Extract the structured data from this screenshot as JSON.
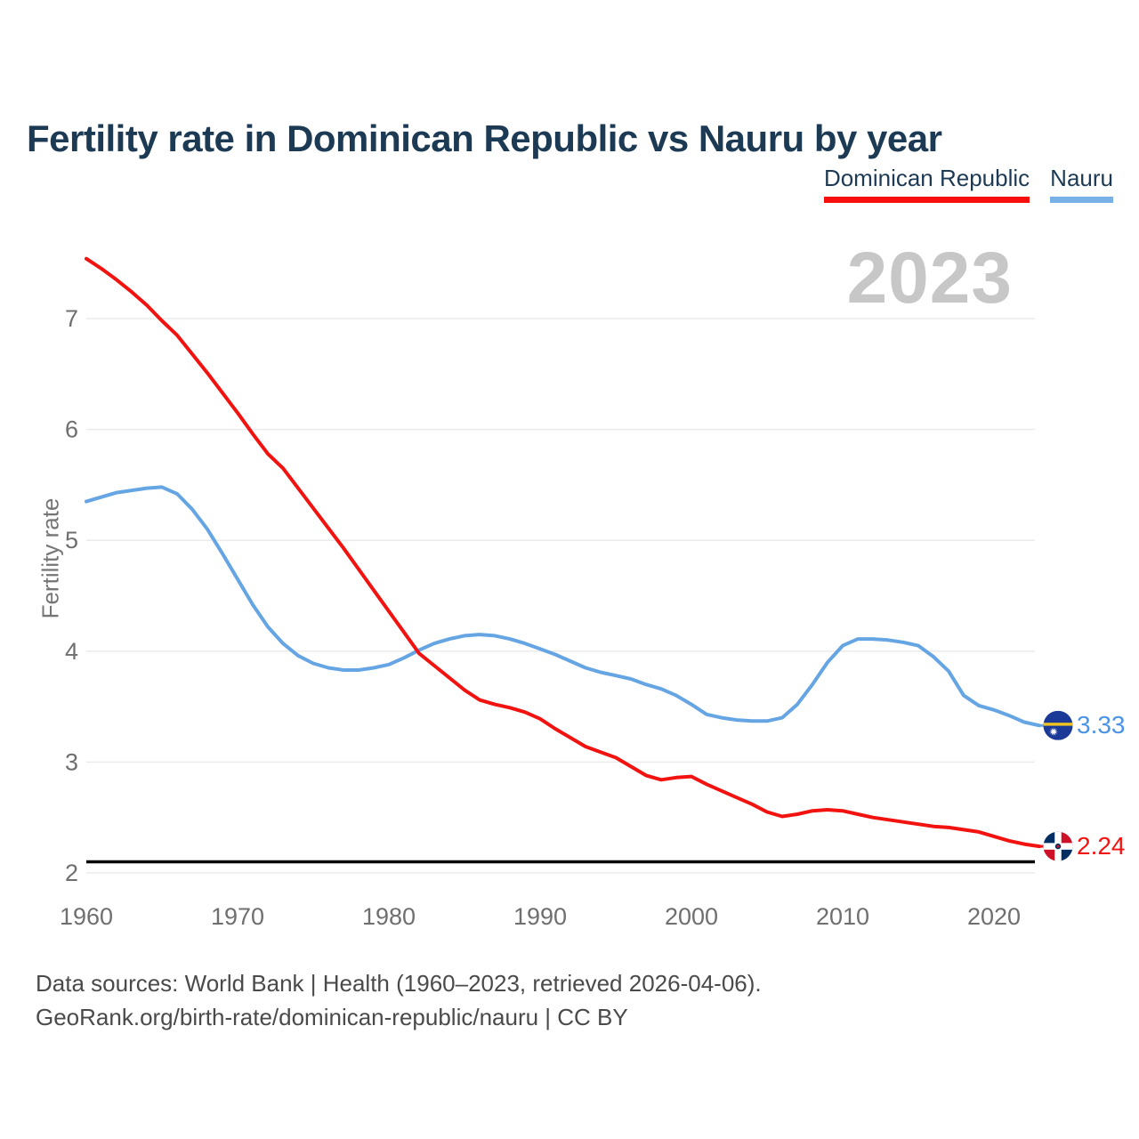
{
  "header": {
    "title": "Fertility rate in Dominican Republic vs Nauru by year"
  },
  "legend": {
    "items": [
      {
        "label": "Dominican Republic",
        "underline_color": "#f70f0f"
      },
      {
        "label": "Nauru",
        "underline_color": "#78b1e8"
      }
    ]
  },
  "watermark": {
    "year": "2023"
  },
  "footer": {
    "line1": "Data sources: World Bank | Health (1960–2023, retrieved 2026-04-06).",
    "line2": "GeoRank.org/birth-rate/dominican-republic/nauru | CC BY"
  },
  "chart_data": {
    "type": "line",
    "title": "Fertility rate in Dominican Republic vs Nauru by year",
    "xlabel": "",
    "ylabel": "Fertility rate",
    "xlim": [
      1960,
      2023
    ],
    "ylim": [
      2,
      7.8
    ],
    "x_ticks": [
      1960,
      1970,
      1980,
      1990,
      2000,
      2010,
      2020
    ],
    "y_ticks": [
      2,
      3,
      4,
      5,
      6,
      7
    ],
    "grid": "horizontal-only",
    "legend_position": "top-right",
    "reference_line": {
      "value": 2.1,
      "color": "#000000"
    },
    "years": [
      1960,
      1961,
      1962,
      1963,
      1964,
      1965,
      1966,
      1967,
      1968,
      1969,
      1970,
      1971,
      1972,
      1973,
      1974,
      1975,
      1976,
      1977,
      1978,
      1979,
      1980,
      1981,
      1982,
      1983,
      1984,
      1985,
      1986,
      1987,
      1988,
      1989,
      1990,
      1991,
      1992,
      1993,
      1994,
      1995,
      1996,
      1997,
      1998,
      1999,
      2000,
      2001,
      2002,
      2003,
      2004,
      2005,
      2006,
      2007,
      2008,
      2009,
      2010,
      2011,
      2012,
      2013,
      2014,
      2015,
      2016,
      2017,
      2018,
      2019,
      2020,
      2021,
      2022,
      2023
    ],
    "series": [
      {
        "name": "Dominican Republic",
        "color": "#f2120f",
        "label_color": "#f2120f",
        "end_label": "2.24",
        "flag": "dominican-republic",
        "values": [
          7.54,
          7.45,
          7.35,
          7.24,
          7.12,
          6.98,
          6.85,
          6.68,
          6.51,
          6.33,
          6.15,
          5.96,
          5.78,
          5.65,
          5.47,
          5.29,
          5.11,
          4.93,
          4.74,
          4.55,
          4.36,
          4.17,
          3.98,
          3.87,
          3.76,
          3.65,
          3.56,
          3.52,
          3.49,
          3.45,
          3.39,
          3.3,
          3.22,
          3.14,
          3.09,
          3.04,
          2.96,
          2.88,
          2.84,
          2.86,
          2.87,
          2.8,
          2.74,
          2.68,
          2.62,
          2.55,
          2.51,
          2.53,
          2.56,
          2.57,
          2.56,
          2.53,
          2.5,
          2.48,
          2.46,
          2.44,
          2.42,
          2.41,
          2.39,
          2.37,
          2.33,
          2.29,
          2.26,
          2.24
        ]
      },
      {
        "name": "Nauru",
        "color": "#66a5e3",
        "label_color": "#4a94e8",
        "end_label": "3.33",
        "flag": "nauru",
        "values": [
          5.35,
          5.39,
          5.43,
          5.45,
          5.47,
          5.48,
          5.42,
          5.28,
          5.1,
          4.88,
          4.65,
          4.42,
          4.22,
          4.07,
          3.96,
          3.89,
          3.85,
          3.83,
          3.83,
          3.85,
          3.88,
          3.94,
          4.01,
          4.07,
          4.11,
          4.14,
          4.15,
          4.14,
          4.11,
          4.07,
          4.02,
          3.97,
          3.91,
          3.85,
          3.81,
          3.78,
          3.75,
          3.7,
          3.66,
          3.6,
          3.52,
          3.43,
          3.4,
          3.38,
          3.37,
          3.37,
          3.4,
          3.52,
          3.7,
          3.9,
          4.05,
          4.11,
          4.11,
          4.1,
          4.08,
          4.05,
          3.95,
          3.82,
          3.6,
          3.51,
          3.47,
          3.42,
          3.36,
          3.33
        ]
      }
    ],
    "styles": {
      "grid_color": "#ebebeb",
      "tick_color": "#6f6f6f",
      "title_color": "#1d3a55",
      "watermark_color": "#c7c7c7",
      "footer_color": "#4a4a4a",
      "nauru_flag": {
        "blue": "#1b3a97",
        "yellow": "#f0c420",
        "star": "#ffffff"
      },
      "dominican_flag": {
        "blue": "#002d62",
        "red": "#ce1126",
        "cross": "#ffffff"
      }
    }
  }
}
